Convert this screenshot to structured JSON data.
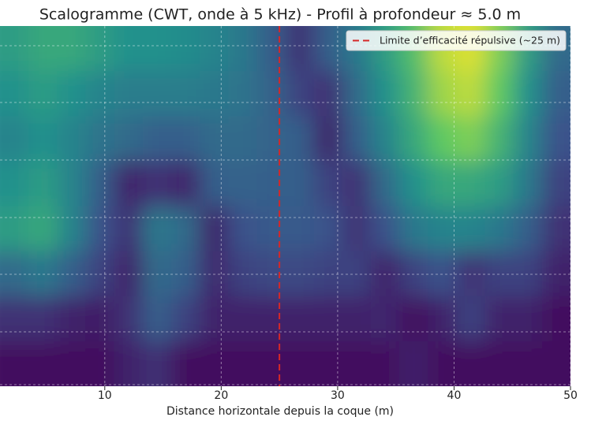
{
  "chart_data": {
    "type": "heatmap",
    "title": "Scalogramme (CWT, onde à 5 kHz) - Profil à profondeur ≈ 5.0 m",
    "xlabel": "Distance horizontale depuis la coque (m)",
    "xlim": [
      1,
      50
    ],
    "xticks": [
      10,
      20,
      30,
      40,
      50
    ],
    "grid": true,
    "colormap": "viridis",
    "bins": [
      1,
      3.45,
      5.9,
      8.35,
      10.8,
      13.25,
      15.7,
      18.15,
      20.6,
      23.05,
      25.5,
      27.95,
      30.4,
      32.85,
      35.3,
      37.75,
      40.2,
      42.65,
      45.1,
      47.55,
      50
    ],
    "z": [
      [
        0.55,
        0.6,
        0.6,
        0.55,
        0.5,
        0.5,
        0.48,
        0.45,
        0.4,
        0.3,
        0.15,
        0.3,
        0.4,
        0.55,
        0.7,
        0.9,
        0.95,
        0.8,
        0.55,
        0.35
      ],
      [
        0.5,
        0.55,
        0.5,
        0.45,
        0.42,
        0.42,
        0.42,
        0.4,
        0.38,
        0.32,
        0.2,
        0.15,
        0.35,
        0.5,
        0.65,
        0.85,
        0.9,
        0.75,
        0.5,
        0.3
      ],
      [
        0.45,
        0.5,
        0.45,
        0.38,
        0.35,
        0.3,
        0.3,
        0.35,
        0.35,
        0.32,
        0.3,
        0.1,
        0.3,
        0.45,
        0.6,
        0.75,
        0.8,
        0.65,
        0.45,
        0.25
      ],
      [
        0.5,
        0.55,
        0.45,
        0.3,
        0.1,
        0.15,
        0.1,
        0.3,
        0.32,
        0.3,
        0.3,
        0.2,
        0.15,
        0.35,
        0.5,
        0.6,
        0.6,
        0.55,
        0.4,
        0.2
      ],
      [
        0.55,
        0.6,
        0.45,
        0.25,
        0.15,
        0.4,
        0.35,
        0.1,
        0.25,
        0.28,
        0.28,
        0.25,
        0.15,
        0.25,
        0.4,
        0.45,
        0.45,
        0.4,
        0.3,
        0.15
      ],
      [
        0.35,
        0.4,
        0.3,
        0.2,
        0.1,
        0.35,
        0.3,
        0.12,
        0.2,
        0.22,
        0.22,
        0.2,
        0.2,
        0.1,
        0.2,
        0.25,
        0.15,
        0.2,
        0.2,
        0.1
      ],
      [
        0.15,
        0.15,
        0.1,
        0.08,
        0.15,
        0.3,
        0.2,
        0.1,
        0.1,
        0.1,
        0.1,
        0.1,
        0.1,
        0.12,
        0.05,
        0.1,
        0.2,
        0.1,
        0.1,
        0.05
      ],
      [
        0.05,
        0.05,
        0.05,
        0.05,
        0.1,
        0.15,
        0.05,
        0.05,
        0.05,
        0.05,
        0.05,
        0.05,
        0.05,
        0.05,
        0.1,
        0.05,
        0.05,
        0.05,
        0.05,
        0.05
      ]
    ],
    "vline": {
      "x": 25,
      "color": "#d62728",
      "label": "Limite d’efficacité répulsive (~25 m)"
    },
    "legend": "upper right"
  }
}
